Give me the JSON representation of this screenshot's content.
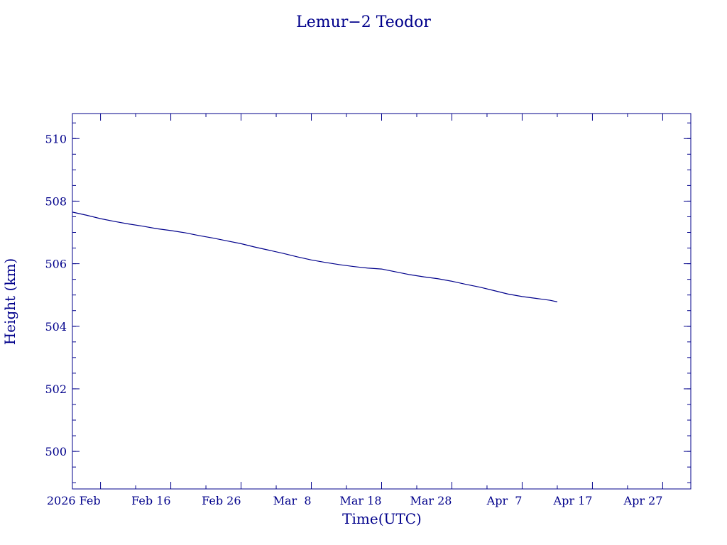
{
  "chart_data": {
    "type": "line",
    "title": "Lemur−2 Teodor",
    "xlabel": "Time(UTC)",
    "ylabel": "Height (km)",
    "xlim": [
      "2026-02-02",
      "2026-05-01"
    ],
    "ylim": [
      498.8,
      510.8
    ],
    "x_ticks": [
      {
        "date": "2026-02-06",
        "label": "2026 Feb"
      },
      {
        "date": "2026-02-16",
        "label": "Feb 16"
      },
      {
        "date": "2026-02-26",
        "label": "Feb 26"
      },
      {
        "date": "2026-03-08",
        "label": "Mar  8"
      },
      {
        "date": "2026-03-18",
        "label": "Mar 18"
      },
      {
        "date": "2026-03-28",
        "label": "Mar 28"
      },
      {
        "date": "2026-04-07",
        "label": "Apr  7"
      },
      {
        "date": "2026-04-17",
        "label": "Apr 17"
      },
      {
        "date": "2026-04-27",
        "label": "Apr 27"
      }
    ],
    "y_ticks": [
      500,
      502,
      504,
      506,
      508,
      510
    ],
    "y_minor_step": 0.5,
    "grid": false,
    "color": "#00008b",
    "series": [
      {
        "x": [
          "2026-02-02",
          "2026-02-04",
          "2026-02-06",
          "2026-02-08",
          "2026-02-10",
          "2026-02-12",
          "2026-02-14",
          "2026-02-16",
          "2026-02-18",
          "2026-02-20",
          "2026-02-22",
          "2026-02-24",
          "2026-02-26",
          "2026-02-28",
          "2026-03-02",
          "2026-03-04",
          "2026-03-06",
          "2026-03-08",
          "2026-03-10",
          "2026-03-12",
          "2026-03-14",
          "2026-03-16",
          "2026-03-18",
          "2026-03-20",
          "2026-03-22",
          "2026-03-24",
          "2026-03-26",
          "2026-03-28",
          "2026-03-30",
          "2026-04-01",
          "2026-04-03",
          "2026-04-05",
          "2026-04-07",
          "2026-04-09",
          "2026-04-11",
          "2026-04-12"
        ],
        "y": [
          507.65,
          507.55,
          507.44,
          507.35,
          507.27,
          507.2,
          507.12,
          507.06,
          506.99,
          506.9,
          506.82,
          506.73,
          506.64,
          506.53,
          506.43,
          506.33,
          506.22,
          506.12,
          506.04,
          505.97,
          505.91,
          505.86,
          505.83,
          505.74,
          505.65,
          505.58,
          505.52,
          505.44,
          505.34,
          505.25,
          505.14,
          505.03,
          504.95,
          504.89,
          504.83,
          504.78
        ]
      }
    ]
  }
}
